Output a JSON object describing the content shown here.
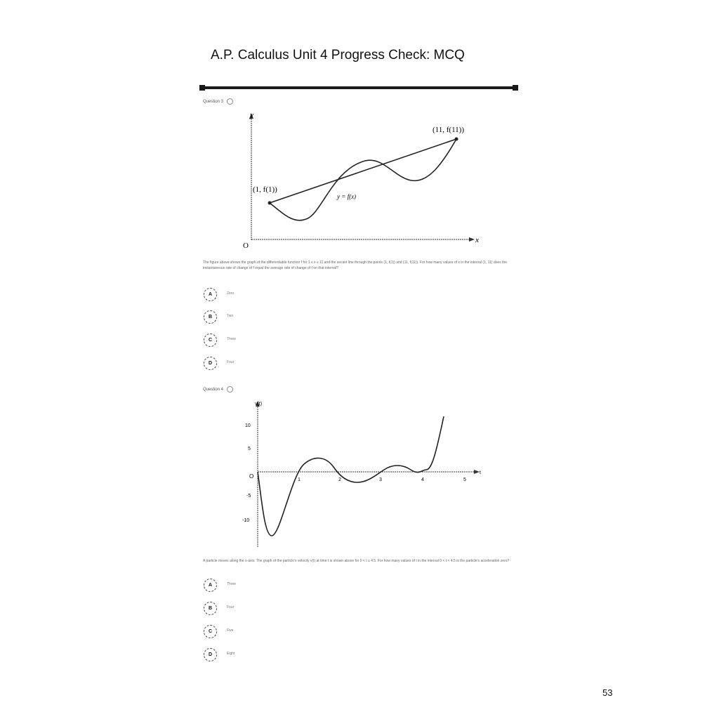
{
  "header": {
    "title": "A.P. Calculus Unit 4 Progress Check: MCQ"
  },
  "questions": [
    {
      "label": "Question 3",
      "graph": {
        "y_axis_label": "y",
        "x_axis_label": "x",
        "origin_label": "O",
        "point_left_label": "(1, f(1))",
        "point_right_label": "(11, f(11))",
        "curve_label": "y = f(x)"
      },
      "text": "The figure above shows the graph of the differentiable function f for 1 ≤ x ≤ 11 and the secant line through the points (1, f(1)) and (11, f(11)). For how many values of x in the interval (1, 11) does the instantaneous rate of change of f equal the average rate of change of f on that interval?",
      "choices": [
        {
          "letter": "A",
          "text": "Zero"
        },
        {
          "letter": "B",
          "text": "Two"
        },
        {
          "letter": "C",
          "text": "Three"
        },
        {
          "letter": "D",
          "text": "Four"
        }
      ]
    },
    {
      "label": "Question 4",
      "graph": {
        "y_axis_label": "v(t)",
        "x_axis_label": "t",
        "origin_label": "O",
        "y_ticks": [
          "10",
          "5",
          "-5",
          "-10"
        ],
        "x_ticks": [
          "1",
          "2",
          "3",
          "4",
          "5"
        ]
      },
      "text": "A particle moves along the x-axis. The graph of the particle's velocity v(t) at time t is shown above for 0 < t ≤ 4.5. For how many values of t in the interval 0 < t < 4.5 is the particle's acceleration zero?",
      "choices": [
        {
          "letter": "A",
          "text": "Three"
        },
        {
          "letter": "B",
          "text": "Four"
        },
        {
          "letter": "C",
          "text": "Five"
        },
        {
          "letter": "D",
          "text": "Eight"
        }
      ]
    }
  ],
  "footer": {
    "page_number": "53"
  }
}
